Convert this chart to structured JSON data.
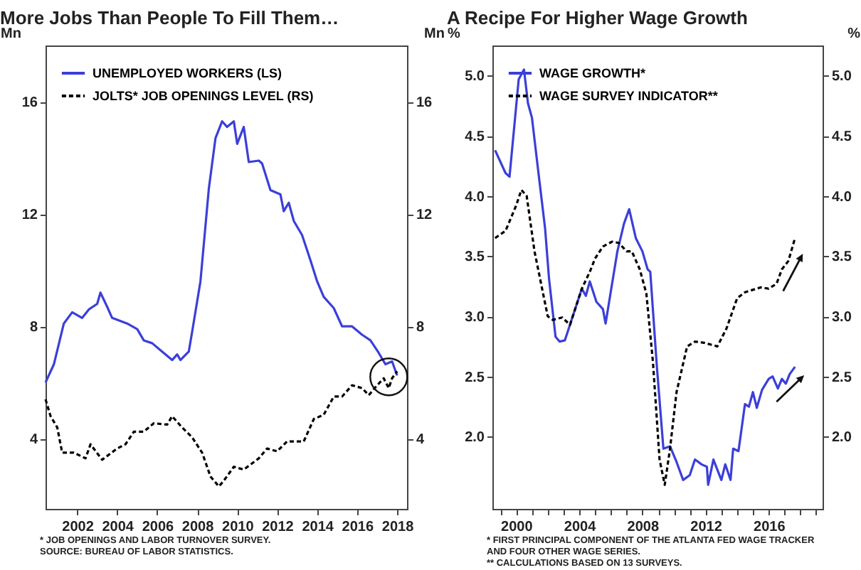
{
  "chart_data": [
    {
      "type": "line",
      "title": "More Jobs Than People To Fill Them…",
      "ylabel": "Mn",
      "y2label": "Mn",
      "legend": "top left",
      "xlim": [
        "2000-06",
        "2018-07"
      ],
      "xticks": [
        "2002",
        "2004",
        "2006",
        "2008",
        "2010",
        "2012",
        "2014",
        "2016",
        "2018"
      ],
      "ylim": [
        1.5,
        18
      ],
      "yticks": [
        4,
        8,
        12,
        16
      ],
      "y2lim": [
        1.5,
        18
      ],
      "y2ticks": [
        4,
        8,
        12,
        16
      ],
      "series": [
        {
          "name": "UNEMPLOYED WORKERS (LS)",
          "color": "#3b3fd9",
          "line_style": "solid",
          "x": [
            "2000-06",
            "2000-11",
            "2001-05",
            "2001-10",
            "2002-04",
            "2002-08",
            "2003-01",
            "2003-03",
            "2003-07",
            "2003-10",
            "2004-07",
            "2005-01",
            "2005-05",
            "2005-10",
            "2006-04",
            "2006-10",
            "2007-01",
            "2007-03",
            "2007-08",
            "2007-10",
            "2008-03",
            "2008-08",
            "2008-12",
            "2009-04",
            "2009-07",
            "2009-11",
            "2010-01",
            "2010-05",
            "2010-08",
            "2011-02",
            "2011-04",
            "2011-09",
            "2012-03",
            "2012-05",
            "2012-08",
            "2012-11",
            "2013-04",
            "2013-09",
            "2014-01",
            "2014-05",
            "2014-11",
            "2015-04",
            "2015-10",
            "2016-04",
            "2016-09",
            "2017-02",
            "2017-06",
            "2017-10",
            "2018-01"
          ],
          "values": [
            6.0,
            6.65,
            8.1,
            8.5,
            8.3,
            8.6,
            8.8,
            9.2,
            8.7,
            8.3,
            8.1,
            7.9,
            7.5,
            7.4,
            7.1,
            6.8,
            7.0,
            6.8,
            7.1,
            7.8,
            9.6,
            12.9,
            14.7,
            15.3,
            15.1,
            15.3,
            14.5,
            15.1,
            13.85,
            13.9,
            13.8,
            12.85,
            12.7,
            12.1,
            12.4,
            11.75,
            11.25,
            10.35,
            9.6,
            9.05,
            8.65,
            8.0,
            8.0,
            7.7,
            7.5,
            7.05,
            6.65,
            6.75,
            6.25
          ]
        },
        {
          "name": "JOLTS* JOB OPENINGS LEVEL (RS)",
          "color": "#000000",
          "line_style": "dashed",
          "axis": "y2",
          "x": [
            "2000-06",
            "2000-09",
            "2001-01",
            "2001-04",
            "2001-11",
            "2002-06",
            "2002-09",
            "2003-04",
            "2004-01",
            "2004-06",
            "2004-11",
            "2005-05",
            "2005-11",
            "2006-07",
            "2006-10",
            "2007-04",
            "2007-10",
            "2008-04",
            "2008-09",
            "2009-02",
            "2009-05",
            "2009-11",
            "2010-05",
            "2011-02",
            "2011-07",
            "2012-01",
            "2012-07",
            "2013-05",
            "2013-11",
            "2014-05",
            "2014-11",
            "2015-04",
            "2015-10",
            "2016-04",
            "2016-08",
            "2017-01",
            "2017-05",
            "2017-08",
            "2017-10",
            "2018-01"
          ],
          "values": [
            5.4,
            4.8,
            4.4,
            3.5,
            3.5,
            3.3,
            3.8,
            3.25,
            3.65,
            3.8,
            4.25,
            4.25,
            4.55,
            4.5,
            4.8,
            4.4,
            4.05,
            3.5,
            2.65,
            2.3,
            2.5,
            3.0,
            2.9,
            3.3,
            3.65,
            3.55,
            3.9,
            3.9,
            4.7,
            4.85,
            5.5,
            5.5,
            5.9,
            5.8,
            5.55,
            5.9,
            6.15,
            5.8,
            6.15,
            6.4
          ]
        }
      ],
      "annotations": [
        "* JOB OPENINGS AND LABOR TURNOVER SURVEY.",
        "SOURCE: BUREAU OF LABOR STATISTICS."
      ]
    },
    {
      "type": "line",
      "title": "A Recipe For Higher Wage Growth",
      "ylabel": "%",
      "y2label": "%",
      "legend": "top left",
      "xlim": [
        "1998-07",
        "2019-06"
      ],
      "xticks": [
        {
          "value": "1999",
          "label": null
        },
        "2000",
        {
          "value": "2001",
          "label": null
        },
        {
          "value": "2002",
          "label": null
        },
        {
          "value": "2003",
          "label": null
        },
        "2004",
        {
          "value": "2005",
          "label": null
        },
        {
          "value": "2006",
          "label": null
        },
        {
          "value": "2007",
          "label": null
        },
        "2008",
        {
          "value": "2009",
          "label": null
        },
        {
          "value": "2010",
          "label": null
        },
        {
          "value": "2011",
          "label": null
        },
        "2012",
        {
          "value": "2013",
          "label": null
        },
        {
          "value": "2014",
          "label": null
        },
        {
          "value": "2015",
          "label": null
        },
        "2016",
        {
          "value": "2017",
          "label": null
        },
        {
          "value": "2018",
          "label": null
        },
        {
          "value": "2019",
          "label": null
        }
      ],
      "ylim": [
        1.4,
        5.25
      ],
      "yticks": [
        {
          "value": 2,
          "label": "2.0"
        },
        {
          "value": 2.5,
          "label": "2.5"
        },
        {
          "value": 3,
          "label": "3.0"
        },
        {
          "value": 3.5,
          "label": "3.5"
        },
        {
          "value": 4,
          "label": "4.0"
        },
        {
          "value": 4.5,
          "label": "4.5"
        },
        {
          "value": 5,
          "label": "5.0"
        }
      ],
      "y2lim": [
        1.4,
        5.25
      ],
      "y2ticks": [
        {
          "value": 2,
          "label": "2.0"
        },
        {
          "value": 2.5,
          "label": "2.5"
        },
        {
          "value": 3,
          "label": "3.0"
        },
        {
          "value": 3.5,
          "label": "3.5"
        },
        {
          "value": 4,
          "label": "4.0"
        },
        {
          "value": 4.5,
          "label": "4.5"
        },
        {
          "value": 5,
          "label": "5.0"
        }
      ],
      "series": [
        {
          "name": "WAGE GROWTH*",
          "color": "#3b3fd9",
          "line_style": "solid",
          "x": [
            "1998-09",
            "1999-05",
            "1999-08",
            "2000-03",
            "2000-07",
            "2000-10",
            "2001-01",
            "2001-06",
            "2001-11",
            "2002-02",
            "2002-07",
            "2002-10",
            "2003-02",
            "2004-03",
            "2004-06",
            "2004-09",
            "2005-02",
            "2005-07",
            "2005-09",
            "2006-06",
            "2006-11",
            "2007-03",
            "2007-08",
            "2008-01",
            "2008-05",
            "2008-07",
            "2008-12",
            "2009-05",
            "2009-10",
            "2010-03",
            "2010-08",
            "2011-01",
            "2011-05",
            "2011-10",
            "2012-02",
            "2012-03",
            "2012-07",
            "2013-01",
            "2013-04",
            "2013-08",
            "2013-10",
            "2014-02",
            "2014-07",
            "2014-10",
            "2015-01",
            "2015-04",
            "2015-08",
            "2016-01",
            "2016-04",
            "2016-08",
            "2016-11",
            "2017-02",
            "2017-05",
            "2017-09"
          ],
          "values": [
            4.38,
            4.19,
            4.16,
            4.97,
            5.05,
            4.77,
            4.65,
            4.19,
            3.73,
            3.31,
            2.83,
            2.79,
            2.8,
            3.23,
            3.17,
            3.29,
            3.12,
            3.06,
            2.94,
            3.54,
            3.77,
            3.89,
            3.65,
            3.54,
            3.39,
            3.37,
            2.58,
            1.9,
            1.92,
            1.79,
            1.64,
            1.68,
            1.81,
            1.77,
            1.75,
            1.6,
            1.81,
            1.64,
            1.77,
            1.64,
            1.9,
            1.88,
            2.27,
            2.25,
            2.37,
            2.24,
            2.39,
            2.48,
            2.5,
            2.4,
            2.48,
            2.44,
            2.52,
            2.58
          ]
        },
        {
          "name": "WAGE SURVEY INDICATOR**",
          "color": "#000000",
          "line_style": "dashed",
          "axis": "y2",
          "x": [
            "1998-09",
            "1999-05",
            "2000-01",
            "2000-05",
            "2000-09",
            "2001-01",
            "2001-03",
            "2002-01",
            "2002-05",
            "2002-12",
            "2003-06",
            "2004-03",
            "2004-09",
            "2005-01",
            "2005-07",
            "2006-02",
            "2006-07",
            "2007-01",
            "2007-05",
            "2007-11",
            "2008-04",
            "2008-09",
            "2009-02",
            "2009-06",
            "2009-10",
            "2010-03",
            "2010-11",
            "2011-05",
            "2011-12",
            "2012-10",
            "2013-05",
            "2014-01",
            "2014-07",
            "2015-07",
            "2016-01",
            "2016-07",
            "2016-11",
            "2017-04",
            "2017-09"
          ],
          "values": [
            3.65,
            3.71,
            3.92,
            4.05,
            4.0,
            3.69,
            3.54,
            3.0,
            2.97,
            2.99,
            2.93,
            3.23,
            3.37,
            3.48,
            3.58,
            3.62,
            3.61,
            3.54,
            3.54,
            3.39,
            3.19,
            2.62,
            1.81,
            1.6,
            1.9,
            2.37,
            2.75,
            2.79,
            2.78,
            2.75,
            2.9,
            3.15,
            3.2,
            3.24,
            3.23,
            3.27,
            3.39,
            3.46,
            3.65
          ]
        }
      ],
      "annotations": [
        "* FIRST PRINCIPAL COMPONENT OF THE ATLANTA FED WAGE TRACKER AND FOUR OTHER WAGE SERIES.",
        "** CALCULATIONS BASED ON 13 SURVEYS."
      ]
    }
  ]
}
